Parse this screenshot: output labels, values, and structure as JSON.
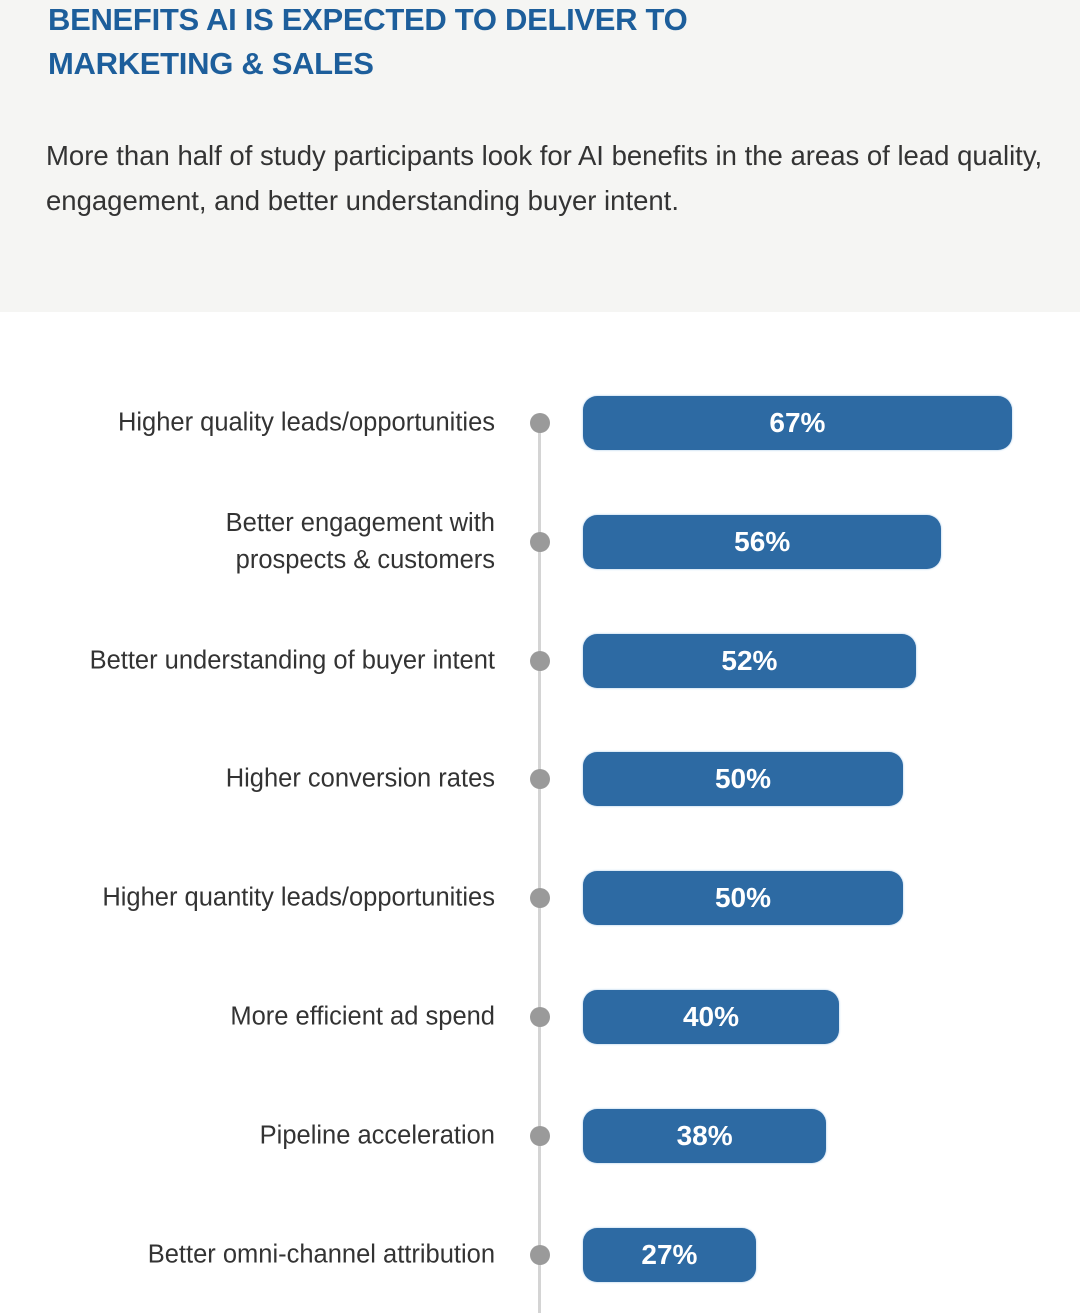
{
  "header": {
    "title": "BENEFITS AI IS EXPECTED TO DELIVER TO\nMARKETING & SALES",
    "subtitle": "More than half of study participants look for AI benefits in the areas of lead quality, engagement, and better understanding buyer intent."
  },
  "colors": {
    "bar": "#2d6aa3",
    "title": "#1d5e9b",
    "header_bg": "#f5f5f3",
    "dot": "#9a9a9a"
  },
  "chart_data": {
    "type": "bar",
    "orientation": "horizontal",
    "title": "BENEFITS AI IS EXPECTED TO DELIVER TO MARKETING & SALES",
    "xlabel": "",
    "ylabel": "",
    "xlim": [
      0,
      67
    ],
    "grid": false,
    "categories": [
      "Higher quality leads/opportunities",
      "Better engagement with\nprospects & customers",
      "Better understanding of buyer intent",
      "Higher conversion rates",
      "Higher quantity leads/opportunities",
      "More efficient ad spend",
      "Pipeline acceleration",
      "Better omni-channel attribution"
    ],
    "values": [
      67,
      56,
      52,
      50,
      50,
      40,
      38,
      27
    ],
    "value_labels": [
      "67%",
      "56%",
      "52%",
      "50%",
      "50%",
      "40%",
      "38%",
      "27%"
    ]
  }
}
